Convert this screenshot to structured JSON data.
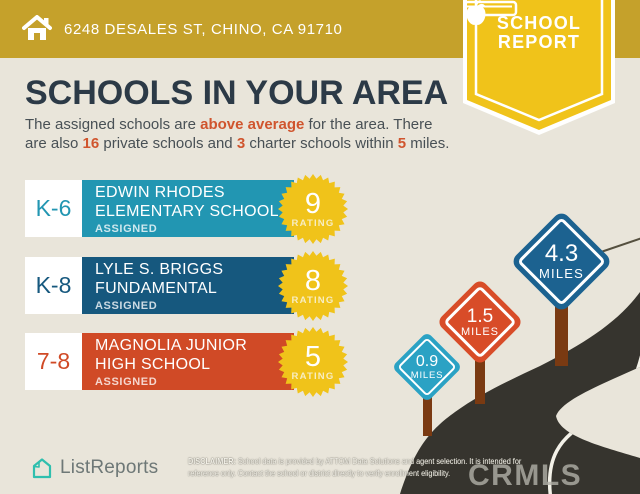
{
  "header": {
    "address": "6248 DESALES ST, CHINO, CA 91710",
    "badge_line1": "SCHOOL",
    "badge_line2": "REPORT"
  },
  "title": "SCHOOLS IN YOUR AREA",
  "subtitle_segments": [
    {
      "text": "The assigned schools are "
    },
    {
      "text": "above average",
      "highlight": true
    },
    {
      "text": " for the area. There are also "
    },
    {
      "text": "16",
      "highlight": true
    },
    {
      "text": " private schools and "
    },
    {
      "text": "3",
      "highlight": true
    },
    {
      "text": " charter schools within "
    },
    {
      "text": "5",
      "highlight": true
    },
    {
      "text": " miles."
    }
  ],
  "schools": [
    {
      "grades": "K-6",
      "name_line1": "EDWIN RHODES",
      "name_line2": "ELEMENTARY SCHOOL",
      "status": "ASSIGNED",
      "rating": "9",
      "rating_label": "RATING",
      "color": "#2296B2"
    },
    {
      "grades": "K-8",
      "name_line1": "LYLE S. BRIGGS",
      "name_line2": "FUNDAMENTAL",
      "status": "ASSIGNED",
      "rating": "8",
      "rating_label": "RATING",
      "color": "#16587E"
    },
    {
      "grades": "7-8",
      "name_line1": "MAGNOLIA JUNIOR",
      "name_line2": "HIGH SCHOOL",
      "status": "ASSIGNED",
      "rating": "5",
      "rating_label": "RATING",
      "color": "#D04A26"
    }
  ],
  "distance_signs": [
    {
      "value": "0.9",
      "unit": "MILES",
      "color": "#2BA2C4"
    },
    {
      "value": "1.5",
      "unit": "MILES",
      "color": "#D84C28"
    },
    {
      "value": "4.3",
      "unit": "MILES",
      "color": "#1C6290"
    }
  ],
  "footer": {
    "brand": "ListReports",
    "disclaimer_label": "DISCLAIMER:",
    "disclaimer_text": " School data is provided by ATTOM Data Solutions and agent selection. It is intended for reference only. Contact the school or district directly to verify enrollment eligibility.",
    "watermark": "CRMLS"
  },
  "colors": {
    "header_gold": "#C5A12B",
    "ribbon_yellow": "#F0C31A",
    "background_beige": "#E9E5DA",
    "title_navy": "#2C3A47",
    "accent_orange": "#D0552E",
    "road_charcoal": "#36342E",
    "post_brown": "#7A3A12",
    "logo_teal": "#2FBFAE"
  }
}
